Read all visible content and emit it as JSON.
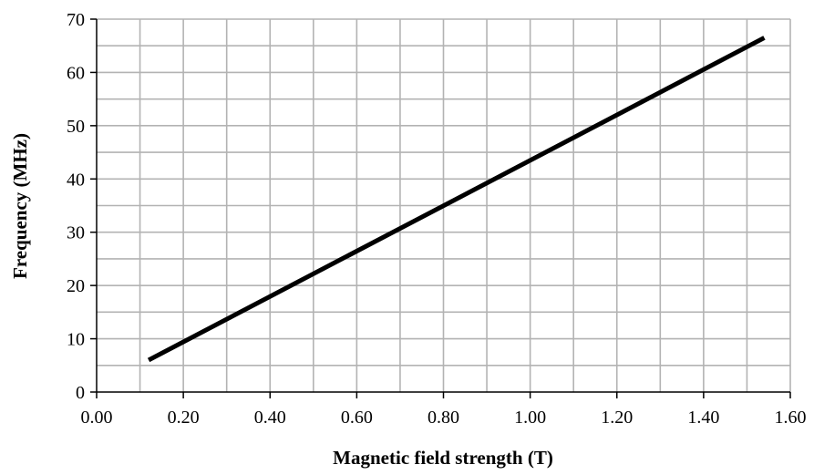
{
  "chart_data": {
    "type": "line",
    "xlabel": "Magnetic field strength (T)",
    "ylabel": "Frequency (MHz)",
    "xlim": [
      0,
      1.6
    ],
    "ylim": [
      0,
      70
    ],
    "x_ticks": [
      "0.00",
      "0.20",
      "0.40",
      "0.60",
      "0.80",
      "1.00",
      "1.20",
      "1.40",
      "1.60"
    ],
    "y_ticks": [
      "0",
      "10",
      "20",
      "30",
      "40",
      "50",
      "60",
      "70"
    ],
    "grid": true,
    "legend": "none",
    "series": [
      {
        "x": [
          0.12,
          1.54
        ],
        "y": [
          6.0,
          66.5
        ],
        "color": "#000000"
      }
    ],
    "grid_color": "#b3b3b3",
    "axis_color": "#000000"
  }
}
